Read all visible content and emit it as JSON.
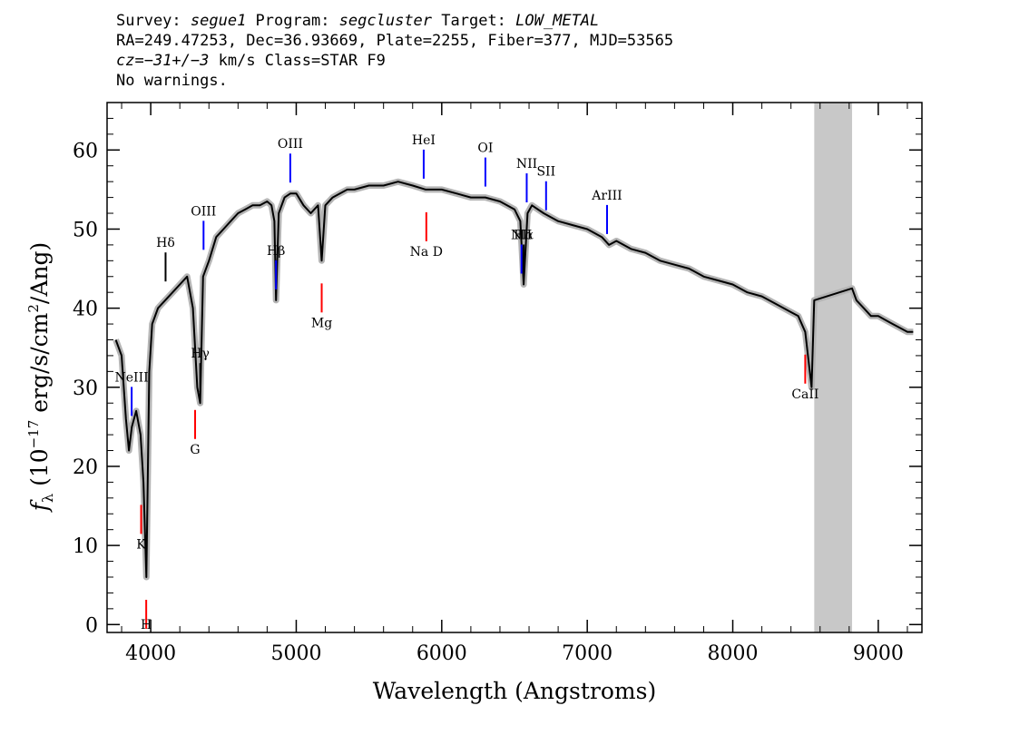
{
  "header": {
    "line1": {
      "survey_prefix": "Survey: ",
      "survey": "segue1",
      "program_prefix": " Program: ",
      "program": "segcluster",
      "target_prefix": " Target: ",
      "target": "LOW_METAL"
    },
    "line2": "RA=249.47253, Dec=36.93669, Plate=2255, Fiber=377, MJD=53565",
    "line3": {
      "cz_label": "cz",
      "cz_value": "=−31+/−3",
      "rest": " km/s Class=STAR F9"
    },
    "line4": "No warnings."
  },
  "chart_data": {
    "type": "line",
    "xlabel": "Wavelength (Angstroms)",
    "ylabel_parts": {
      "f": "f",
      "sub": "λ",
      "pre": " (10",
      "sup1": "−17",
      "mid": " erg/s/cm",
      "sup2": "2",
      "post": "/Ang)"
    },
    "xlim": [
      3700,
      9300
    ],
    "ylim": [
      -1,
      66
    ],
    "x_ticks": [
      4000,
      5000,
      6000,
      7000,
      8000,
      9000
    ],
    "y_ticks": [
      0,
      10,
      20,
      30,
      40,
      50,
      60
    ],
    "masked_region": [
      8560,
      8820
    ],
    "series": [
      {
        "x": [
          3760,
          3800,
          3830,
          3850,
          3870,
          3900,
          3930,
          3950,
          3970,
          3990,
          4010,
          4050,
          4100,
          4150,
          4200,
          4250,
          4290,
          4320,
          4340,
          4360,
          4400,
          4450,
          4500,
          4550,
          4600,
          4650,
          4700,
          4750,
          4800,
          4830,
          4850,
          4861,
          4880,
          4920,
          4960,
          5000,
          5050,
          5100,
          5150,
          5175,
          5200,
          5250,
          5300,
          5350,
          5400,
          5500,
          5600,
          5700,
          5800,
          5890,
          5950,
          6000,
          6100,
          6200,
          6300,
          6400,
          6500,
          6540,
          6563,
          6590,
          6620,
          6700,
          6800,
          6900,
          7000,
          7100,
          7150,
          7200,
          7300,
          7400,
          7500,
          7600,
          7700,
          7800,
          7900,
          8000,
          8100,
          8200,
          8300,
          8400,
          8450,
          8498,
          8542,
          8560,
          8820,
          8850,
          8900,
          8950,
          9000,
          9050,
          9100,
          9150,
          9200,
          9240
        ],
        "y": [
          36,
          34,
          26,
          22,
          25,
          27,
          24,
          18,
          6,
          32,
          38,
          40,
          41,
          42,
          43,
          44,
          40,
          30,
          28,
          44,
          46,
          49,
          50,
          51,
          52,
          52.5,
          53,
          53,
          53.5,
          53,
          51,
          41,
          52,
          54,
          54.5,
          54.5,
          53,
          52,
          53,
          46,
          53,
          54,
          54.5,
          55,
          55,
          55.5,
          55.5,
          56,
          55.5,
          55,
          55,
          55,
          54.5,
          54,
          54,
          53.5,
          52.5,
          51,
          43,
          52,
          53,
          52,
          51,
          50.5,
          50,
          49,
          48,
          48.5,
          47.5,
          47,
          46,
          45.5,
          45,
          44,
          43.5,
          43,
          42,
          41.5,
          40.5,
          39.5,
          39,
          37,
          30,
          41,
          42.5,
          41,
          40,
          39,
          39,
          38.5,
          38,
          37.5,
          37,
          37
        ]
      }
    ],
    "lines": [
      {
        "label": "NeIII",
        "wave": 3869,
        "color": "#0000ff"
      },
      {
        "label": "Hδ",
        "wave": 4102,
        "color": "#000000"
      },
      {
        "label": "Hγ",
        "wave": 4340,
        "color": "#000000"
      },
      {
        "label": "OIII",
        "wave": 4363,
        "color": "#0000ff"
      },
      {
        "label": "Hβ",
        "wave": 4861,
        "color": "#0000ff"
      },
      {
        "label": "OIII",
        "wave": 4959,
        "color": "#0000ff"
      },
      {
        "label": "HeI",
        "wave": 5876,
        "color": "#0000ff"
      },
      {
        "label": "OI",
        "wave": 6300,
        "color": "#0000ff"
      },
      {
        "label": "NII",
        "wave": 6548,
        "color": "#0000ff"
      },
      {
        "label": "Hα",
        "wave": 6563,
        "color": "#000000"
      },
      {
        "label": "NII",
        "wave": 6584,
        "color": "#0000ff"
      },
      {
        "label": "SII",
        "wave": 6717,
        "color": "#0000ff"
      },
      {
        "label": "ArIII",
        "wave": 7136,
        "color": "#0000ff"
      },
      {
        "label": "K",
        "wave": 3934,
        "color": "#ff0000"
      },
      {
        "label": "H",
        "wave": 3969,
        "color": "#ff0000"
      },
      {
        "label": "G",
        "wave": 4305,
        "color": "#ff0000"
      },
      {
        "label": "Mg",
        "wave": 5175,
        "color": "#ff0000"
      },
      {
        "label": "Na D",
        "wave": 5894,
        "color": "#ff0000"
      },
      {
        "label": "CaII",
        "wave": 8498,
        "color": "#ff0000"
      }
    ]
  }
}
